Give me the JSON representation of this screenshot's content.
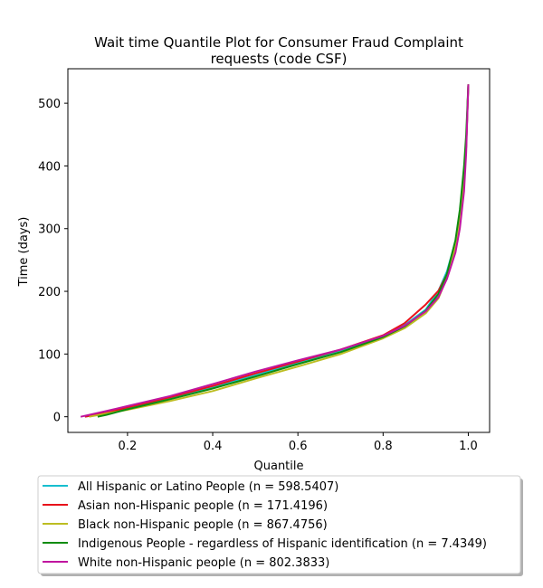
{
  "chart_data": {
    "type": "line",
    "title_line1": "Wait time Quantile Plot for Consumer Fraud Complaint",
    "title_line2": "requests (code CSF)",
    "xlabel": "Quantile",
    "ylabel": "Time (days)",
    "xlim": [
      0.06,
      1.05
    ],
    "ylim": [
      -25,
      555
    ],
    "x_ticks": [
      0.2,
      0.4,
      0.6,
      0.8,
      1.0
    ],
    "x_tick_labels": [
      "0.2",
      "0.4",
      "0.6",
      "0.8",
      "1.0"
    ],
    "y_ticks": [
      0,
      100,
      200,
      300,
      400,
      500
    ],
    "y_tick_labels": [
      "0",
      "100",
      "200",
      "300",
      "400",
      "500"
    ],
    "legend_position": "below",
    "series": [
      {
        "name": "All Hispanic or Latino People (n = 598.5407)",
        "color": "#17becf",
        "x": [
          0.1,
          0.15,
          0.2,
          0.3,
          0.4,
          0.5,
          0.6,
          0.7,
          0.8,
          0.85,
          0.9,
          0.93,
          0.95,
          0.97,
          0.98,
          0.99,
          0.995,
          1.0
        ],
        "y": [
          0,
          6,
          14,
          29,
          47,
          66,
          86,
          105,
          129,
          146,
          171,
          201,
          232,
          280,
          320,
          390,
          430,
          530
        ]
      },
      {
        "name": "Asian non-Hispanic people (n = 171.4196)",
        "color": "#e8131b",
        "x": [
          0.1,
          0.15,
          0.2,
          0.3,
          0.4,
          0.5,
          0.6,
          0.7,
          0.8,
          0.85,
          0.9,
          0.93,
          0.95,
          0.97,
          0.98,
          0.99,
          0.995,
          1.0
        ],
        "y": [
          0,
          6,
          15,
          31,
          49,
          69,
          88,
          107,
          130,
          149,
          179,
          201,
          227,
          273,
          310,
          380,
          430,
          530
        ]
      },
      {
        "name": "Black non-Hispanic people (n = 867.4756)",
        "color": "#bcbd22",
        "x": [
          0.11,
          0.15,
          0.2,
          0.3,
          0.4,
          0.5,
          0.6,
          0.7,
          0.8,
          0.85,
          0.9,
          0.93,
          0.95,
          0.97,
          0.98,
          0.99,
          0.995,
          1.0
        ],
        "y": [
          0,
          5,
          11,
          25,
          41,
          61,
          80,
          100,
          125,
          141,
          165,
          189,
          222,
          270,
          310,
          380,
          430,
          530
        ]
      },
      {
        "name": "Indigenous People - regardless of Hispanic identification (n = 7.4349)",
        "color": "#0e8c0e",
        "x": [
          0.13,
          0.15,
          0.2,
          0.3,
          0.4,
          0.5,
          0.6,
          0.7,
          0.8,
          0.85,
          0.9,
          0.93,
          0.95,
          0.97,
          0.98,
          0.99,
          0.995,
          1.0
        ],
        "y": [
          0,
          3,
          12,
          28,
          45,
          64,
          84,
          103,
          127,
          144,
          169,
          196,
          228,
          282,
          330,
          400,
          450,
          530
        ]
      },
      {
        "name": "White non-Hispanic people (n = 802.3833)",
        "color": "#c0159f",
        "x": [
          0.09,
          0.15,
          0.2,
          0.3,
          0.4,
          0.5,
          0.6,
          0.7,
          0.8,
          0.85,
          0.9,
          0.93,
          0.95,
          0.97,
          0.98,
          0.99,
          0.995,
          1.0
        ],
        "y": [
          0,
          9,
          17,
          33,
          52,
          72,
          90,
          107,
          129,
          145,
          168,
          191,
          220,
          262,
          300,
          360,
          420,
          530
        ]
      }
    ]
  }
}
